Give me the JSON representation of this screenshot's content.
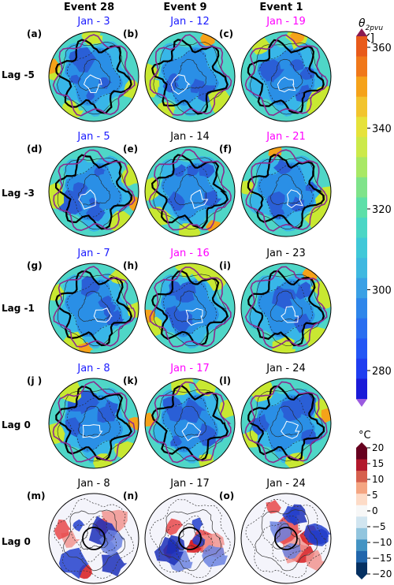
{
  "columns": [
    "Event 28",
    "Event 9",
    "Event 1"
  ],
  "rows": [
    "Lag -5",
    "Lag -3",
    "Lag -1",
    "Lag 0",
    "Lag 0"
  ],
  "panels": [
    [
      {
        "letter": "(a)",
        "title": "Jan - 3",
        "color": "#1a1aff"
      },
      {
        "letter": "(b)",
        "title": "Jan - 12",
        "color": "#1a1aff"
      },
      {
        "letter": "(c)",
        "title": "Jan - 19",
        "color": "#ff00ff"
      }
    ],
    [
      {
        "letter": "(d)",
        "title": "Jan - 5",
        "color": "#1a1aff"
      },
      {
        "letter": "(e)",
        "title": "Jan - 14",
        "color": "#000000"
      },
      {
        "letter": "(f)",
        "title": "Jan - 21",
        "color": "#ff00ff"
      }
    ],
    [
      {
        "letter": "(g)",
        "title": "Jan - 7",
        "color": "#1a1aff"
      },
      {
        "letter": "(h)",
        "title": "Jan - 16",
        "color": "#ff00ff"
      },
      {
        "letter": "(i)",
        "title": "Jan - 23",
        "color": "#000000"
      }
    ],
    [
      {
        "letter": "(j )",
        "title": "Jan - 8",
        "color": "#1a1aff"
      },
      {
        "letter": "(k)",
        "title": "Jan - 17",
        "color": "#ff00ff"
      },
      {
        "letter": "(l)",
        "title": "Jan - 24",
        "color": "#000000"
      }
    ],
    [
      {
        "letter": "(m)",
        "title": "Jan - 8",
        "color": "#000000"
      },
      {
        "letter": "(n)",
        "title": "Jan - 17",
        "color": "#000000"
      },
      {
        "letter": "(o)",
        "title": "Jan - 24",
        "color": "#000000"
      }
    ]
  ],
  "colorbar_theta": {
    "label_main": "θ",
    "label_sub": "2pvu",
    "label_unit": " [K]",
    "ticks": [
      "360",
      "340",
      "320",
      "300",
      "280"
    ]
  },
  "colorbar_temp": {
    "label": "°C",
    "ticks": [
      "20",
      "15",
      "10",
      "5",
      "0",
      "−5",
      "−10",
      "−15",
      "−20"
    ]
  }
}
